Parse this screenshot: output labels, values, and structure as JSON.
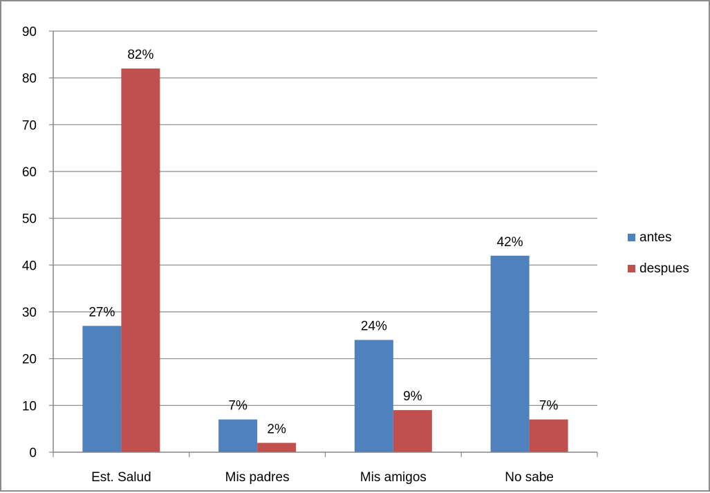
{
  "chart_data": {
    "type": "bar",
    "categories": [
      "Est. Salud",
      "Mis padres",
      "Mis amigos",
      "No sabe"
    ],
    "series": [
      {
        "name": "antes",
        "values": [
          27,
          7,
          24,
          42
        ],
        "labels": [
          "27%",
          "7%",
          "24%",
          "42%"
        ],
        "color": "#4f81bd"
      },
      {
        "name": "despues",
        "values": [
          82,
          2,
          9,
          7
        ],
        "labels": [
          "82%",
          "2%",
          "9%",
          "7%"
        ],
        "color": "#c0504d"
      }
    ],
    "yticks": [
      "0",
      "10",
      "20",
      "30",
      "40",
      "50",
      "60",
      "70",
      "80",
      "90"
    ],
    "ylim": [
      0,
      90
    ],
    "grid": true,
    "legend_position": "right"
  }
}
